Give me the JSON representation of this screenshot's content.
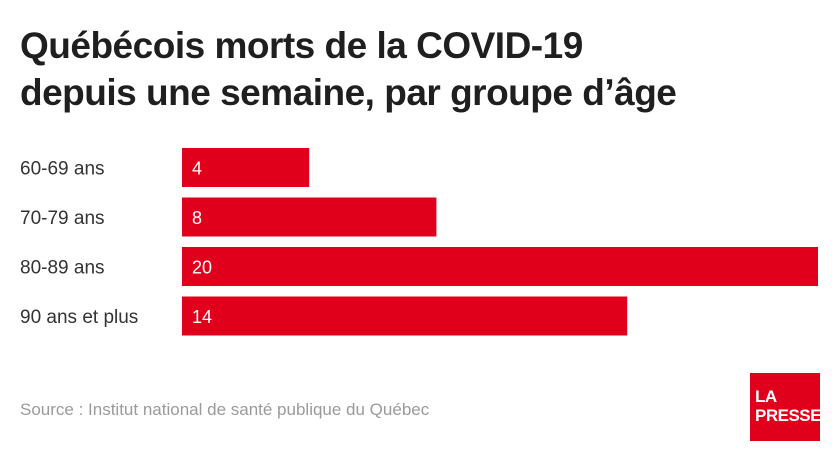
{
  "chart_data": {
    "type": "bar",
    "orientation": "horizontal",
    "title": "Québécois morts de la COVID-19 depuis une semaine, par groupe d’âge",
    "title_lines": [
      "Québécois morts de la COVID-19",
      "depuis une semaine, par groupe d’âge"
    ],
    "categories": [
      "60-69 ans",
      "70-79 ans",
      "80-89 ans",
      "90 ans et plus"
    ],
    "values": [
      4,
      8,
      20,
      14
    ],
    "xlim": [
      0,
      20
    ],
    "bar_color": "#e0001b",
    "grid": false
  },
  "source": "Source : Institut national de santé publique du Québec",
  "logo": {
    "line1": "LA",
    "line2": "PRESSE",
    "color": "#e0001b"
  }
}
